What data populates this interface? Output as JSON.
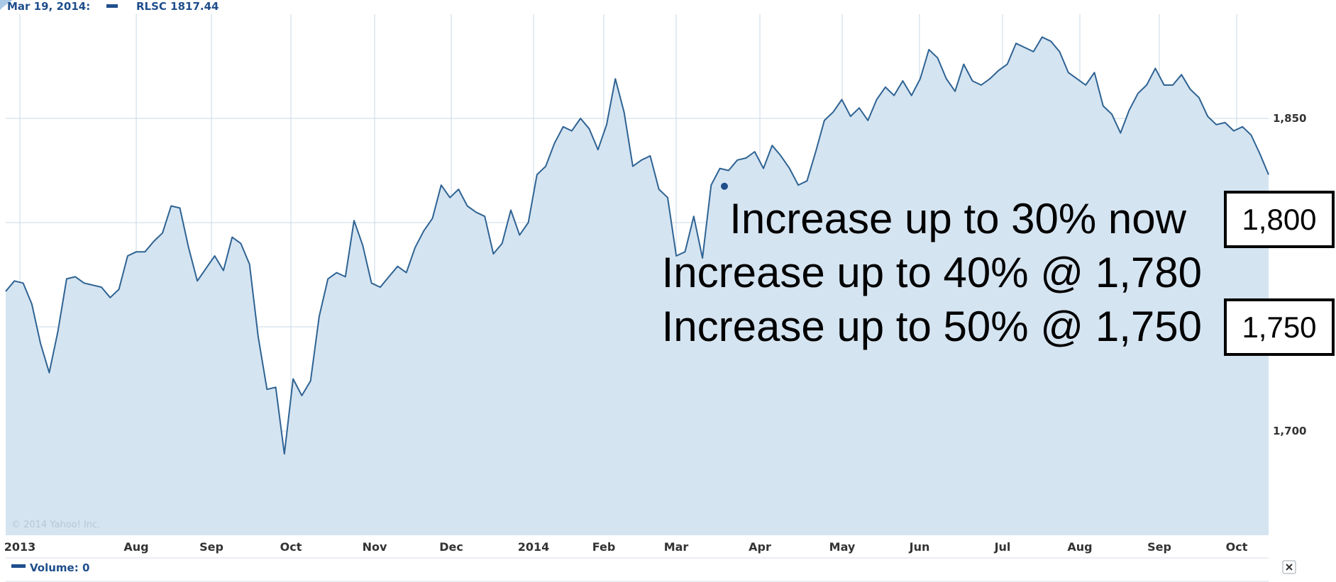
{
  "header": {
    "date_text": "Mar 19, 2014:",
    "series_text": "RLSC 1817.44"
  },
  "copyright": "© 2014 Yahoo! Inc.",
  "volume_label": "Volume: 0",
  "close_icon": "close-icon",
  "colors": {
    "line": "#2e6393",
    "fill": "#d5e4f1",
    "grid": "#c9d9e7",
    "text": "#333333"
  },
  "annotations": [
    "Increase up to 30% now",
    "Increase up to 40% @ 1,780",
    "Increase up to 50% @ 1,750"
  ],
  "level_boxes": [
    "1,800",
    "1,750"
  ],
  "chart_data": {
    "type": "area",
    "title": "",
    "xlabel": "",
    "ylabel": "",
    "x_ticks": [
      "2013",
      "Aug",
      "Sep",
      "Oct",
      "Nov",
      "Dec",
      "2014",
      "Feb",
      "Mar",
      "Apr",
      "May",
      "Jun",
      "Jul",
      "Aug",
      "Sep",
      "Oct"
    ],
    "y_ticks": [
      1700,
      1750,
      1800,
      1850
    ],
    "y_tick_labels": [
      "1,700",
      "",
      "",
      "1,850"
    ],
    "ylim": [
      1650,
      1900
    ],
    "grid": true,
    "series": [
      {
        "name": "RLSC",
        "values": [
          1767,
          1772,
          1771,
          1761,
          1742,
          1728,
          1748,
          1773,
          1774,
          1771,
          1770,
          1769,
          1764,
          1768,
          1784,
          1786,
          1786,
          1791,
          1795,
          1808,
          1807,
          1788,
          1772,
          1778,
          1784,
          1777,
          1793,
          1790,
          1780,
          1745,
          1720,
          1721,
          1689,
          1725,
          1717,
          1724,
          1755,
          1773,
          1776,
          1774,
          1801,
          1789,
          1771,
          1769,
          1774,
          1779,
          1776,
          1788,
          1796,
          1802,
          1818,
          1812,
          1816,
          1808,
          1805,
          1803,
          1785,
          1790,
          1806,
          1794,
          1800,
          1823,
          1827,
          1838,
          1846,
          1844,
          1850,
          1845,
          1835,
          1847,
          1869,
          1853,
          1827,
          1830,
          1832,
          1816,
          1812,
          1784,
          1786,
          1803,
          1783,
          1818,
          1826,
          1825,
          1830,
          1831,
          1834,
          1826,
          1837,
          1832,
          1826,
          1818,
          1820,
          1834,
          1849,
          1853,
          1859,
          1851,
          1855,
          1849,
          1859,
          1865,
          1861,
          1868,
          1861,
          1869,
          1883,
          1879,
          1869,
          1863,
          1876,
          1868,
          1866,
          1869,
          1873,
          1876,
          1886,
          1884,
          1882,
          1889,
          1887,
          1882,
          1872,
          1869,
          1866,
          1872,
          1856,
          1852,
          1843,
          1854,
          1862,
          1866,
          1874,
          1866,
          1866,
          1871,
          1864,
          1860,
          1851,
          1847,
          1848,
          1844,
          1846,
          1842,
          1833,
          1823
        ]
      }
    ],
    "highlight_point": {
      "date": "Mar 19, 2014",
      "value": 1817.44
    }
  }
}
